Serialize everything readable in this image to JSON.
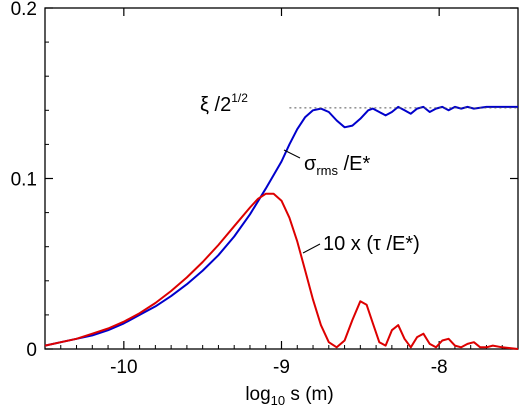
{
  "chart_data": {
    "type": "line",
    "xlabel": "log",
    "xlabel_sub": "10",
    "xlabel_rest": " s  (m)",
    "xlim": [
      -10.5,
      -7.5
    ],
    "ylim": [
      0,
      0.2
    ],
    "x_ticks": [
      {
        "value": -10,
        "label": "-10"
      },
      {
        "value": -9,
        "label": "-9"
      },
      {
        "value": -8,
        "label": "-8"
      }
    ],
    "y_ticks": [
      {
        "value": 0,
        "label": "0"
      },
      {
        "value": 0.1,
        "label": "0.1"
      },
      {
        "value": 0.2,
        "label": "0.2"
      }
    ],
    "reference_line": {
      "y": 0.1414,
      "x_start": -8.95,
      "x_end": -7.5,
      "style": "dotted",
      "color": "#555555",
      "label_main": "ξ /2",
      "label_sup": "1/2"
    },
    "series": [
      {
        "color": "#0000cc",
        "label_main": "σ",
        "label_sub": "rms",
        "label_rest": " /E*",
        "points": [
          [
            -10.5,
            0.002
          ],
          [
            -10.4,
            0.004
          ],
          [
            -10.3,
            0.006
          ],
          [
            -10.2,
            0.008
          ],
          [
            -10.1,
            0.011
          ],
          [
            -10.0,
            0.015
          ],
          [
            -9.9,
            0.02
          ],
          [
            -9.8,
            0.025
          ],
          [
            -9.7,
            0.031
          ],
          [
            -9.6,
            0.038
          ],
          [
            -9.5,
            0.046
          ],
          [
            -9.4,
            0.055
          ],
          [
            -9.3,
            0.066
          ],
          [
            -9.2,
            0.079
          ],
          [
            -9.1,
            0.094
          ],
          [
            -9.0,
            0.11
          ],
          [
            -8.95,
            0.12
          ],
          [
            -8.9,
            0.129
          ],
          [
            -8.85,
            0.136
          ],
          [
            -8.8,
            0.14
          ],
          [
            -8.75,
            0.141
          ],
          [
            -8.7,
            0.139
          ],
          [
            -8.65,
            0.134
          ],
          [
            -8.6,
            0.13
          ],
          [
            -8.55,
            0.131
          ],
          [
            -8.5,
            0.135
          ],
          [
            -8.45,
            0.14
          ],
          [
            -8.42,
            0.141
          ],
          [
            -8.38,
            0.139
          ],
          [
            -8.34,
            0.137
          ],
          [
            -8.3,
            0.139
          ],
          [
            -8.26,
            0.142
          ],
          [
            -8.22,
            0.14
          ],
          [
            -8.18,
            0.138
          ],
          [
            -8.14,
            0.141
          ],
          [
            -8.1,
            0.142
          ],
          [
            -8.06,
            0.139
          ],
          [
            -8.02,
            0.141
          ],
          [
            -7.98,
            0.142
          ],
          [
            -7.94,
            0.14
          ],
          [
            -7.9,
            0.142
          ],
          [
            -7.86,
            0.141
          ],
          [
            -7.82,
            0.142
          ],
          [
            -7.78,
            0.141
          ],
          [
            -7.7,
            0.142
          ],
          [
            -7.6,
            0.142
          ],
          [
            -7.5,
            0.142
          ]
        ]
      },
      {
        "color": "#dd0000",
        "label_main": "10 x (τ /E*)",
        "points": [
          [
            -10.5,
            0.002
          ],
          [
            -10.4,
            0.004
          ],
          [
            -10.3,
            0.006
          ],
          [
            -10.2,
            0.009
          ],
          [
            -10.1,
            0.012
          ],
          [
            -10.0,
            0.016
          ],
          [
            -9.9,
            0.021
          ],
          [
            -9.8,
            0.027
          ],
          [
            -9.7,
            0.034
          ],
          [
            -9.6,
            0.042
          ],
          [
            -9.5,
            0.051
          ],
          [
            -9.4,
            0.061
          ],
          [
            -9.3,
            0.072
          ],
          [
            -9.2,
            0.083
          ],
          [
            -9.15,
            0.088
          ],
          [
            -9.1,
            0.091
          ],
          [
            -9.05,
            0.091
          ],
          [
            -9.0,
            0.087
          ],
          [
            -8.95,
            0.077
          ],
          [
            -8.9,
            0.063
          ],
          [
            -8.85,
            0.046
          ],
          [
            -8.8,
            0.029
          ],
          [
            -8.75,
            0.014
          ],
          [
            -8.7,
            0.004
          ],
          [
            -8.65,
            0.001
          ],
          [
            -8.6,
            0.005
          ],
          [
            -8.55,
            0.017
          ],
          [
            -8.5,
            0.028
          ],
          [
            -8.46,
            0.026
          ],
          [
            -8.42,
            0.015
          ],
          [
            -8.38,
            0.004
          ],
          [
            -8.34,
            0.002
          ],
          [
            -8.3,
            0.011
          ],
          [
            -8.26,
            0.014
          ],
          [
            -8.22,
            0.006
          ],
          [
            -8.18,
            0.001
          ],
          [
            -8.14,
            0.007
          ],
          [
            -8.1,
            0.009
          ],
          [
            -8.06,
            0.003
          ],
          [
            -8.02,
            0.001
          ],
          [
            -7.98,
            0.005
          ],
          [
            -7.94,
            0.006
          ],
          [
            -7.9,
            0.002
          ],
          [
            -7.86,
            0.001
          ],
          [
            -7.82,
            0.003
          ],
          [
            -7.78,
            0.004
          ],
          [
            -7.74,
            0.001
          ],
          [
            -7.7,
            0.001
          ],
          [
            -7.66,
            0.002
          ],
          [
            -7.6,
            0.001
          ],
          [
            -7.5,
            0.0
          ]
        ]
      }
    ]
  }
}
